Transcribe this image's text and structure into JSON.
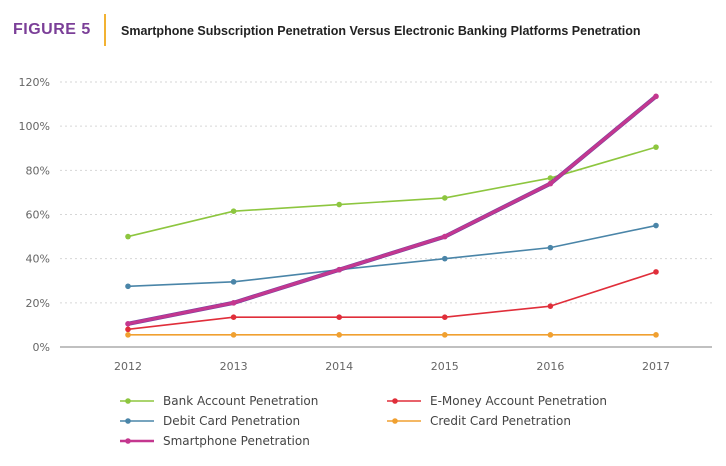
{
  "figure": {
    "label": "FIGURE 5",
    "title": "Smartphone Subscription Penetration Versus Electronic Banking Platforms Penetration"
  },
  "chart_data": {
    "type": "line",
    "x": [
      "2012",
      "2013",
      "2014",
      "2015",
      "2016",
      "2017"
    ],
    "ylim": [
      0,
      120
    ],
    "yticks": [
      "0%",
      "20%",
      "40%",
      "60%",
      "80%",
      "100%",
      "120%"
    ],
    "grid": true,
    "legend_position": "bottom",
    "series": [
      {
        "name": "Bank Account Penetration",
        "color": "#8dc63f",
        "values": [
          50,
          61.5,
          64.5,
          67.5,
          76.5,
          90.5
        ]
      },
      {
        "name": "E-Money Account Penetration",
        "color": "#e02e3a",
        "values": [
          8,
          13.5,
          13.5,
          13.5,
          18.5,
          34
        ]
      },
      {
        "name": "Debit Card Penetration",
        "color": "#4a85a8",
        "values": [
          27.5,
          29.5,
          35,
          40,
          45,
          55
        ]
      },
      {
        "name": "Credit Card Penetration",
        "color": "#f0a030",
        "values": [
          5.5,
          5.5,
          5.5,
          5.5,
          5.5,
          5.5
        ]
      },
      {
        "name": "Smartphone Penetration",
        "color": "#c4378f",
        "values": [
          10.5,
          20,
          35,
          50,
          74,
          113.5
        ]
      }
    ]
  }
}
